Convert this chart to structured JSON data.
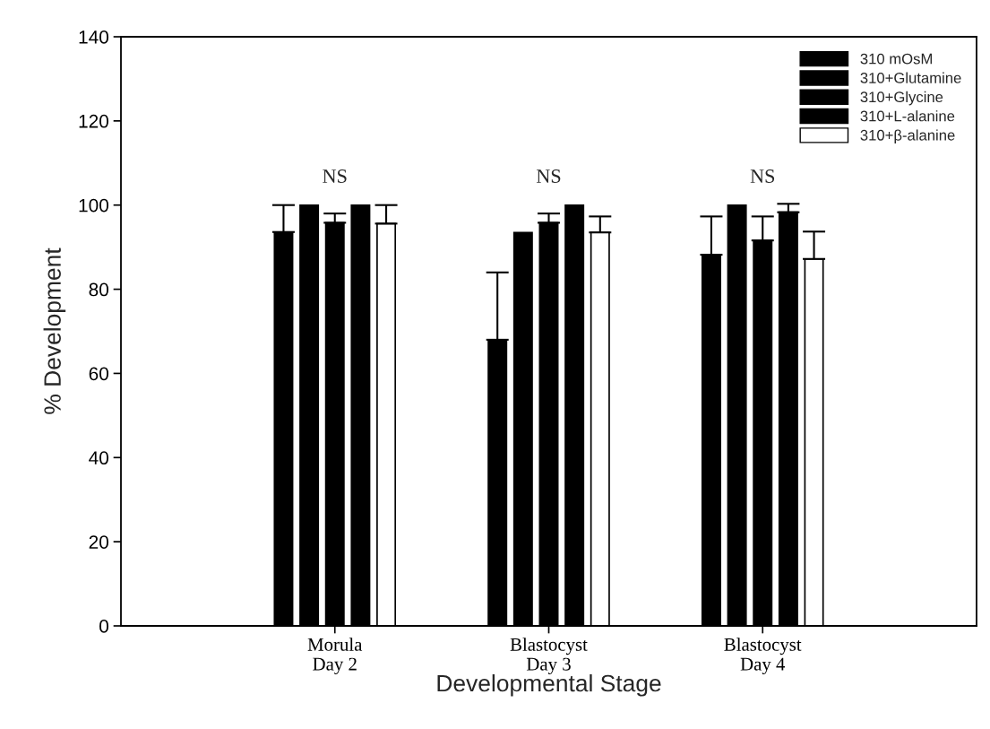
{
  "chart_data": {
    "type": "bar",
    "categories": [
      "Morula\nDay 2",
      "Blastocyst\nDay 3",
      "Blastocyst\nDay 4"
    ],
    "series": [
      {
        "name": "310 mOsM",
        "color": "#000000",
        "values": [
          93.6,
          68,
          88.2
        ],
        "errors": [
          [
            93.6,
            100
          ],
          [
            68,
            84
          ],
          [
            88.2,
            97.3
          ]
        ]
      },
      {
        "name": "310+Glutamine",
        "color": "#000000",
        "values": [
          100,
          93.5,
          100
        ]
      },
      {
        "name": "310+Glycine",
        "color": "#000000",
        "values": [
          95.8,
          95.8,
          91.6
        ],
        "errors": [
          [
            95.8,
            98
          ],
          [
            95.8,
            98
          ],
          [
            91.6,
            97.3
          ]
        ]
      },
      {
        "name": "310+L-alanine",
        "color": "#000000",
        "values": [
          100,
          100,
          98.3
        ],
        "errors": [
          null,
          null,
          [
            98.3,
            100.3
          ]
        ]
      },
      {
        "name": "310+β-alanine",
        "color": "#ffffff",
        "values": [
          95.6,
          93.5,
          87.2
        ],
        "errors": [
          [
            95.6,
            100
          ],
          [
            93.5,
            97.3
          ],
          [
            87.2,
            93.7
          ]
        ]
      }
    ],
    "xlabel": "Developmental Stage",
    "ylabel": "% Development",
    "ylim": [
      0,
      140
    ],
    "yticks": [
      0,
      20,
      40,
      60,
      80,
      100,
      120,
      140
    ],
    "annotations": [
      "NS",
      "NS",
      "NS"
    ],
    "grid": false,
    "legend": "top right"
  }
}
